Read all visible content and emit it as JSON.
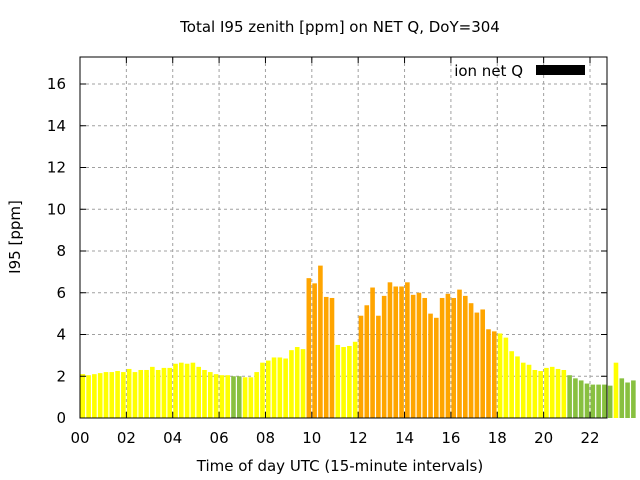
{
  "chart_data": {
    "type": "bar",
    "title": "Total I95 zenith [ppm] on NET Q, DoY=304",
    "xlabel": "Time of day UTC (15-minute intervals)",
    "ylabel": "I95 [ppm]",
    "ylim": [
      0,
      17.2
    ],
    "xlim": [
      0,
      22.75
    ],
    "yticks": [
      "0",
      "2",
      "4",
      "6",
      "8",
      "10",
      "12",
      "14",
      "16"
    ],
    "xticks": [
      "00",
      "02",
      "04",
      "06",
      "08",
      "10",
      "12",
      "14",
      "16",
      "18",
      "20",
      "22"
    ],
    "grid": true,
    "legend": {
      "label": "ion net Q",
      "placement": "top-right"
    },
    "colors": {
      "low": "#88c040",
      "medium": "#ffff00",
      "high": "#ffa500",
      "legend": "#000000"
    },
    "values": [
      2.1,
      2.05,
      2.1,
      2.15,
      2.2,
      2.2,
      2.25,
      2.2,
      2.35,
      2.2,
      2.3,
      2.3,
      2.45,
      2.3,
      2.4,
      2.4,
      2.6,
      2.65,
      2.6,
      2.65,
      2.45,
      2.3,
      2.2,
      2.1,
      2.05,
      2.05,
      2.0,
      2.0,
      1.95,
      1.95,
      2.2,
      2.65,
      2.75,
      2.9,
      2.9,
      2.85,
      3.25,
      3.4,
      3.3,
      6.7,
      6.45,
      7.3,
      5.8,
      5.75,
      3.5,
      3.4,
      3.45,
      3.65,
      4.9,
      5.4,
      6.25,
      4.9,
      5.85,
      6.5,
      6.3,
      6.3,
      6.5,
      5.9,
      6.0,
      5.75,
      5.0,
      4.8,
      5.75,
      5.95,
      5.75,
      6.15,
      5.85,
      5.5,
      5.05,
      5.2,
      4.25,
      4.15,
      4.05,
      3.85,
      3.2,
      2.95,
      2.65,
      2.55,
      2.3,
      2.25,
      2.4,
      2.45,
      2.35,
      2.3,
      2.05,
      1.9,
      1.8,
      1.65,
      1.6,
      1.6,
      1.6,
      1.55,
      2.65,
      1.9,
      1.7,
      1.8
    ],
    "levels": [
      "m",
      "m",
      "m",
      "m",
      "m",
      "m",
      "m",
      "m",
      "m",
      "m",
      "m",
      "m",
      "m",
      "m",
      "m",
      "m",
      "m",
      "m",
      "m",
      "m",
      "m",
      "m",
      "m",
      "m",
      "m",
      "m",
      "l",
      "l",
      "m",
      "m",
      "m",
      "m",
      "m",
      "m",
      "m",
      "m",
      "m",
      "m",
      "m",
      "h",
      "h",
      "h",
      "h",
      "h",
      "m",
      "m",
      "m",
      "m",
      "h",
      "h",
      "h",
      "h",
      "h",
      "h",
      "h",
      "h",
      "h",
      "h",
      "h",
      "h",
      "h",
      "h",
      "h",
      "h",
      "h",
      "h",
      "h",
      "h",
      "h",
      "h",
      "h",
      "h",
      "m",
      "m",
      "m",
      "m",
      "m",
      "m",
      "m",
      "m",
      "m",
      "m",
      "m",
      "m",
      "l",
      "l",
      "l",
      "l",
      "l",
      "l",
      "l",
      "l",
      "m",
      "l",
      "l",
      "l"
    ]
  }
}
